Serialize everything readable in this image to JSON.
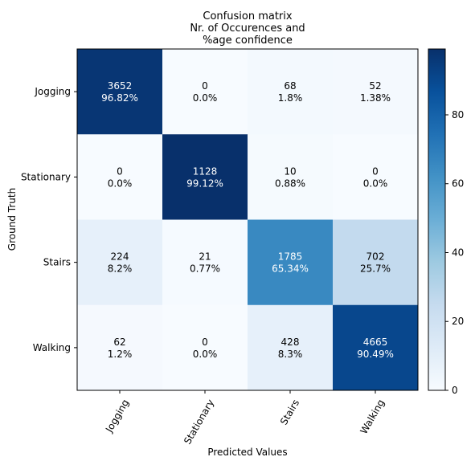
{
  "chart_data": {
    "type": "heatmap",
    "title": [
      "Confusion matrix",
      "Nr. of Occurences and",
      "%age confidence"
    ],
    "xlabel": "Predicted Values",
    "ylabel": "Ground Truth",
    "x_categories": [
      "Jogging",
      "Stationary",
      "Stairs",
      "Walking"
    ],
    "y_categories": [
      "Jogging",
      "Stationary",
      "Stairs",
      "Walking"
    ],
    "counts": [
      [
        3652,
        0,
        68,
        52
      ],
      [
        0,
        1128,
        10,
        0
      ],
      [
        224,
        21,
        1785,
        702
      ],
      [
        62,
        0,
        428,
        4665
      ]
    ],
    "percent_labels": [
      [
        "96.82%",
        "0.0%",
        "1.8%",
        "1.38%"
      ],
      [
        "0.0%",
        "99.12%",
        "0.88%",
        "0.0%"
      ],
      [
        "8.2%",
        "0.77%",
        "65.34%",
        "25.7%"
      ],
      [
        "1.2%",
        "0.0%",
        "8.3%",
        "90.49%"
      ]
    ],
    "percent_values": [
      [
        96.82,
        0.0,
        1.8,
        1.38
      ],
      [
        0.0,
        99.12,
        0.88,
        0.0
      ],
      [
        8.2,
        0.77,
        65.34,
        25.7
      ],
      [
        1.2,
        0.0,
        8.3,
        90.49
      ]
    ],
    "colorbar": {
      "range": [
        0,
        99.12
      ],
      "ticks": [
        0,
        20,
        40,
        60,
        80
      ],
      "colormap": "Blues"
    },
    "text_colors": {
      "dark": "#000000",
      "light": "#ffffff"
    }
  }
}
